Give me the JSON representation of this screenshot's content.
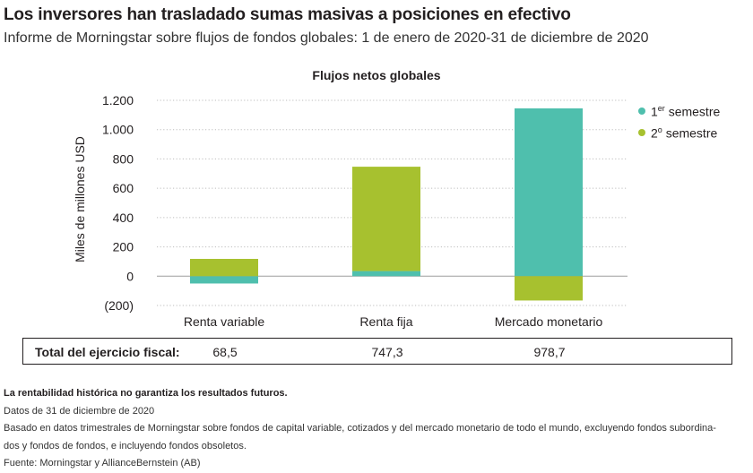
{
  "header": {
    "title": "Los inversores han trasladado sumas masivas a posiciones en efectivo",
    "subtitle": "Informe de Morningstar sobre flujos de fondos globales: 1 de enero de 2020-31 de diciembre de 2020"
  },
  "colors": {
    "series1": "#4fbfad",
    "series2": "#a7c12f",
    "grid": "#bdbdbd"
  },
  "chart_data": {
    "type": "bar",
    "stacked": true,
    "title": "Flujos netos globales",
    "ylabel": "Miles de millones USD",
    "xlabel": "",
    "ylim": [
      -200,
      1200
    ],
    "yticks": [
      -200,
      0,
      200,
      400,
      600,
      800,
      1000,
      1200
    ],
    "ytick_labels": [
      "(200)",
      "0",
      "200",
      "400",
      "600",
      "800",
      "1.000",
      "1.200"
    ],
    "categories": [
      "Renta variable",
      "Renta fija",
      "Mercado monetario"
    ],
    "series": [
      {
        "name": "1er semestre",
        "label_main": "1",
        "label_sup": "er",
        "label_rest": " semestre",
        "values": [
          -50,
          35,
          1145
        ]
      },
      {
        "name": "2º semestre",
        "label_main": "2",
        "label_sup": "o",
        "label_rest": " semestre",
        "values": [
          118,
          712,
          -166
        ]
      }
    ],
    "legend_position": "top-right"
  },
  "totals": {
    "label": "Total del ejercicio fiscal:",
    "values": [
      "68,5",
      "747,3",
      "978,7"
    ]
  },
  "notes": {
    "disclaimer": "La rentabilidad histórica no garantiza los resultados futuros.",
    "date": "Datos de 31 de diciembre de 2020",
    "methodology_line1": "Basado en datos trimestrales de Morningstar sobre fondos de capital variable, cotizados y del mercado monetario de todo el mundo, excluyendo fondos subordina-",
    "methodology_line2": "dos y fondos de fondos, e incluyendo fondos obsoletos.",
    "source": "Fuente: Morningstar y AllianceBernstein (AB)"
  }
}
